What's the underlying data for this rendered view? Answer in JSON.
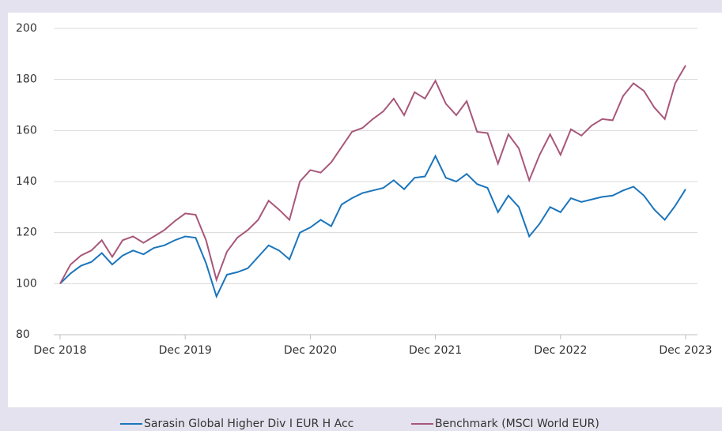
{
  "chart_data": {
    "type": "line",
    "categories": [
      "Dec 2018",
      null,
      null,
      null,
      null,
      null,
      null,
      null,
      null,
      null,
      null,
      null,
      "Dec 2019",
      null,
      null,
      null,
      null,
      null,
      null,
      null,
      null,
      null,
      null,
      null,
      "Dec 2020",
      null,
      null,
      null,
      null,
      null,
      null,
      null,
      null,
      null,
      null,
      null,
      "Dec 2021",
      null,
      null,
      null,
      null,
      null,
      null,
      null,
      null,
      null,
      null,
      null,
      "Dec 2022",
      null,
      null,
      null,
      null,
      null,
      null,
      null,
      null,
      null,
      null,
      null,
      "Dec 2023"
    ],
    "series": [
      {
        "name": "Sarasin Global Higher Div I EUR H Acc",
        "color": "#1b75bc",
        "values": [
          100,
          104,
          107,
          108.5,
          112,
          107.5,
          111,
          113,
          111.5,
          114,
          115,
          117,
          118.5,
          118,
          108,
          95,
          103.5,
          104.5,
          106,
          110.5,
          115,
          113,
          109.5,
          120,
          122,
          125,
          122.5,
          131,
          133.5,
          135.5,
          136.5,
          137.5,
          140.5,
          137,
          141.5,
          142,
          150,
          141.5,
          140,
          143,
          139,
          137.5,
          128,
          134.5,
          130,
          118.5,
          123.5,
          130,
          128,
          133.5,
          132,
          133,
          134,
          134.5,
          136.5,
          138,
          134.5,
          129,
          125,
          130.5,
          137
        ]
      },
      {
        "name": "Benchmark (MSCI World EUR)",
        "color": "#a8577a",
        "values": [
          100,
          107.5,
          111,
          113,
          117,
          110.5,
          117,
          118.5,
          116,
          118.5,
          121,
          124.5,
          127.5,
          127,
          117,
          101.5,
          112.5,
          118,
          121,
          125,
          132.5,
          129,
          125,
          140,
          144.5,
          143.5,
          147.5,
          153.5,
          159.5,
          161,
          164.5,
          167.5,
          172.5,
          166,
          175,
          172.5,
          179.5,
          170.5,
          166,
          171.5,
          159.5,
          159,
          147,
          158.5,
          153,
          140.5,
          150.5,
          158.5,
          150.5,
          160.5,
          158,
          162,
          164.5,
          164,
          173.5,
          178.5,
          175.5,
          169,
          164.5,
          178.5,
          185.5
        ]
      }
    ],
    "ylim": [
      80,
      200
    ],
    "yticks": [
      80,
      100,
      120,
      140,
      160,
      180,
      200
    ],
    "grid": true,
    "legend": "bottom"
  }
}
